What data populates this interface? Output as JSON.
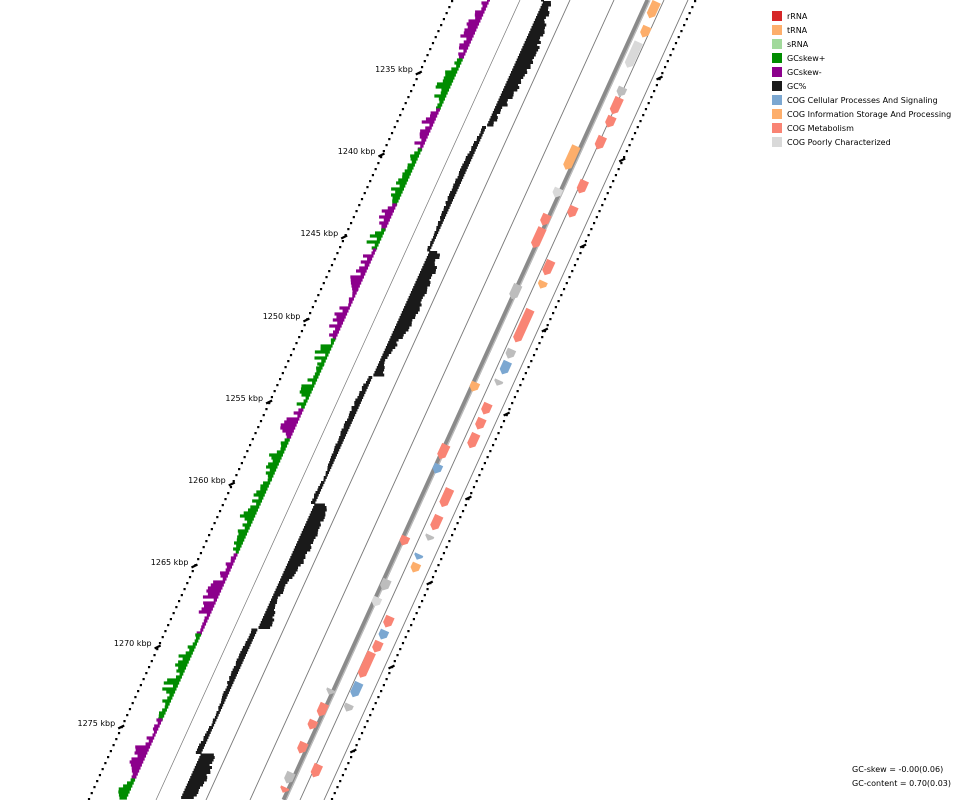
{
  "ticks": [
    "1235 kbp",
    "1240 kbp",
    "1245 kbp",
    "1250 kbp",
    "1255 kbp",
    "1260 kbp",
    "1265 kbp",
    "1270 kbp",
    "1275 kbp"
  ],
  "legend": [
    {
      "label": "rRNA",
      "color": "#d62728"
    },
    {
      "label": "tRNA",
      "color": "#fdae6b"
    },
    {
      "label": "sRNA",
      "color": "#a1d99b"
    },
    {
      "label": "GCskew+",
      "color": "#008c00"
    },
    {
      "label": "GCskew-",
      "color": "#8c008c"
    },
    {
      "label": "GC%",
      "color": "#1a1a1a"
    },
    {
      "label": "COG Cellular Processes And Signaling",
      "color": "#7ba7d1"
    },
    {
      "label": "COG Information Storage And Processing",
      "color": "#fdae6b"
    },
    {
      "label": "COG Metabolism",
      "color": "#f98474"
    },
    {
      "label": "COG Poorly Characterized",
      "color": "#d9d9d9"
    }
  ],
  "stats": {
    "gc_skew": "GC-skew = -0.00(0.06)",
    "gc_content": "GC-content = 0.70(0.03)"
  }
}
